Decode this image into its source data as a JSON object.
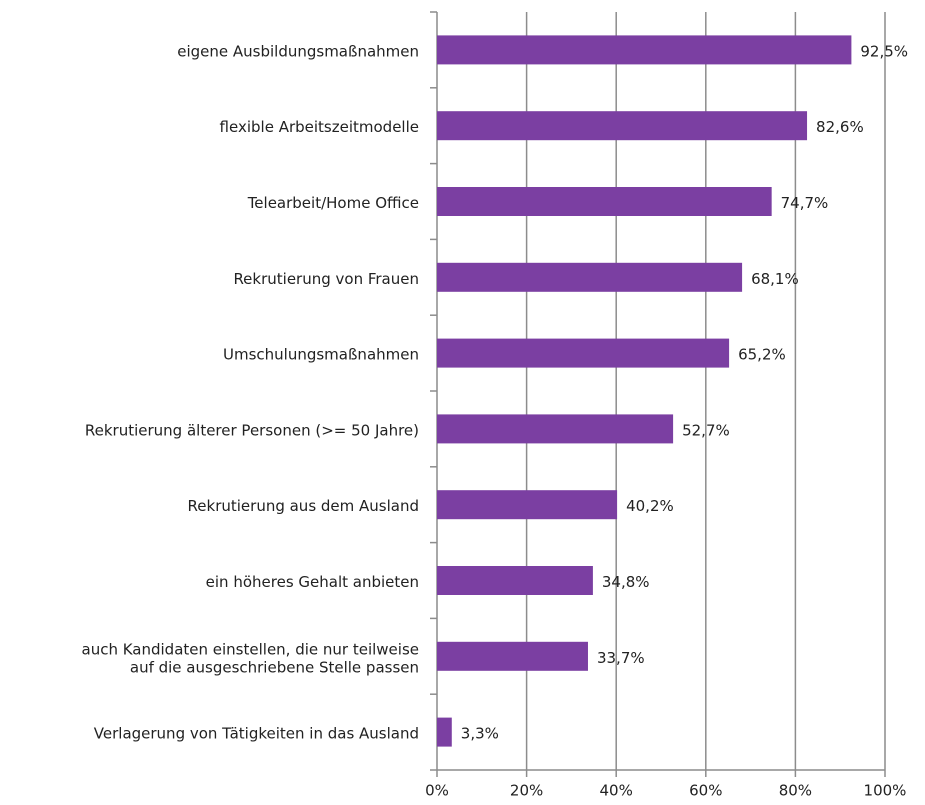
{
  "chart_data": {
    "type": "bar",
    "orientation": "horizontal",
    "categories": [
      "eigene Ausbildungsmaßnahmen",
      "flexible Arbeitszeitmodelle",
      "Telearbeit/Home Office",
      "Rekrutierung von Frauen",
      "Umschulungsmaßnahmen",
      "Rekrutierung älterer Personen (>= 50 Jahre)",
      "Rekrutierung aus dem Ausland",
      "ein höheres Gehalt anbieten",
      "auch Kandidaten einstellen, die nur teilweise\nauf die ausgeschriebene Stelle passen",
      "Verlagerung von Tätigkeiten in das Ausland"
    ],
    "values": [
      92.5,
      82.6,
      74.7,
      68.1,
      65.2,
      52.7,
      40.2,
      34.8,
      33.7,
      3.3
    ],
    "value_labels": [
      "92,5%",
      "82,6%",
      "74,7%",
      "68,1%",
      "65,2%",
      "52,7%",
      "40,2%",
      "34,8%",
      "33,7%",
      "3,3%"
    ],
    "color": "#7b3fa2",
    "xlim": [
      0,
      100
    ],
    "xticks": [
      {
        "value": 0,
        "label": "0%"
      },
      {
        "value": 20,
        "label": "20%"
      },
      {
        "value": 40,
        "label": "40%"
      },
      {
        "value": 60,
        "label": "60%"
      },
      {
        "value": 80,
        "label": "80%"
      },
      {
        "value": 100,
        "label": "100%"
      }
    ],
    "grid": true
  }
}
